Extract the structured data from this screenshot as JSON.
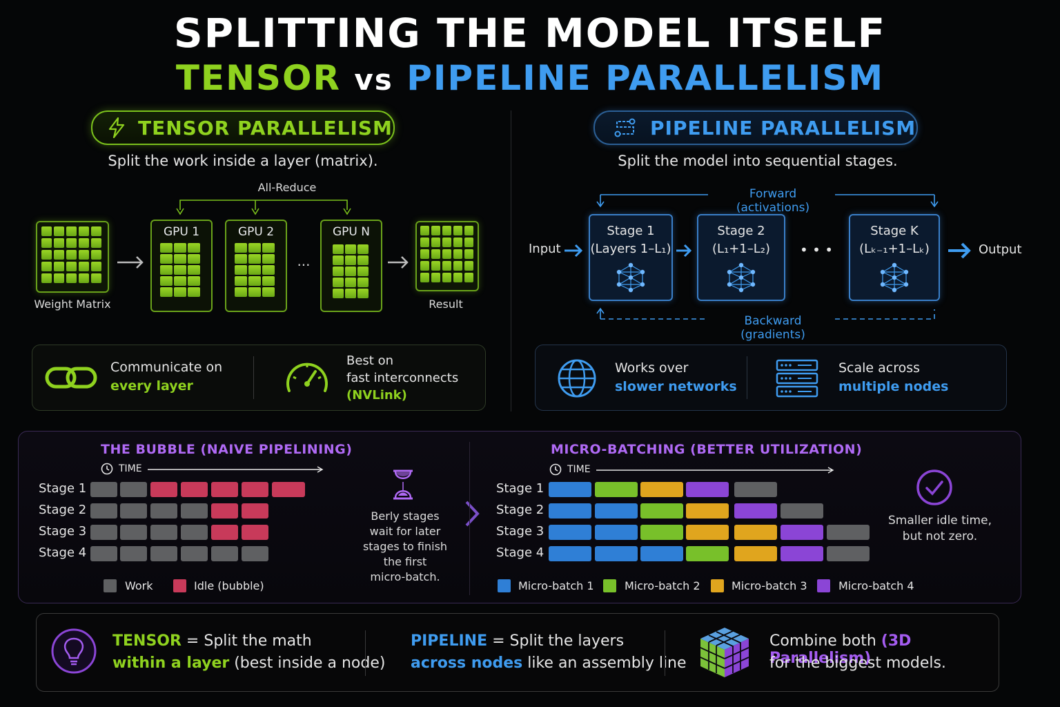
{
  "title": "SPLITTING THE MODEL ITSELF",
  "subtitle": {
    "tensor": "TENSOR",
    "vs": "vs",
    "pipeline": "PIPELINE PARALLELISM"
  },
  "tensor": {
    "heading": "TENSOR PARALLELISM",
    "description": "Split the work inside a layer (matrix).",
    "all_reduce": "All-Reduce",
    "weight_matrix": "Weight Matrix",
    "gpu1": "GPU 1",
    "gpu2": "GPU 2",
    "gpun": "GPU N",
    "ellipsis": "...",
    "result": "Result",
    "feature1_line1": "Communicate on",
    "feature1_line2": "every layer",
    "feature2_line1": "Best on",
    "feature2_line2": "fast interconnects",
    "feature2_line3": "(NVLink)"
  },
  "pipeline": {
    "heading": "PIPELINE PARALLELISM",
    "description": "Split the model into sequential stages.",
    "forward": "Forward (activations)",
    "backward": "Backward (gradients)",
    "input": "Input",
    "output": "Output",
    "ellipsis": "• • •",
    "stage1": {
      "name": "Stage 1",
      "range": "(Layers 1–L₁)"
    },
    "stage2": {
      "name": "Stage 2",
      "range": "(L₁+1–L₂)"
    },
    "stagek": {
      "name": "Stage K",
      "range": "(Lₖ₋₁+1–Lₖ)"
    },
    "feature1_line1": "Works over",
    "feature1_line2": "slower networks",
    "feature2_line1": "Scale across",
    "feature2_line2": "multiple nodes"
  },
  "bubble": {
    "title": "THE BUBBLE (NAIVE PIPELINING)",
    "time": "TIME",
    "stages": [
      "Stage 1",
      "Stage 2",
      "Stage 3",
      "Stage 4"
    ],
    "legend_work": "Work",
    "legend_idle": "Idle (bubble)",
    "note": [
      "Berly stages",
      "wait for later",
      "stages to finish",
      "the first",
      "micro-batch."
    ]
  },
  "microbatch": {
    "title": "MICRO-BATCHING (BETTER UTILIZATION)",
    "time": "TIME",
    "stages": [
      "Stage 1",
      "Stage 2",
      "Stage 3",
      "Stage 4"
    ],
    "legend": [
      "Micro-batch 1",
      "Micro-batch 2",
      "Micro-batch 3",
      "Micro-batch 4"
    ],
    "note": [
      "Smaller idle time,",
      "but not zero."
    ]
  },
  "summary": {
    "tensor_word": "TENSOR",
    "tensor_eq": " = Split the math",
    "tensor_line2a": "within a layer",
    "tensor_line2b": " (best inside a node)",
    "pipeline_word": "PIPELINE",
    "pipeline_eq": " = Split the layers",
    "pipeline_line2a": "across nodes",
    "pipeline_line2b": " like an assembly line",
    "combine_a": "Combine both ",
    "combine_b": "(3D Parallelism)",
    "combine_c": "for the biggest models."
  },
  "colors": {
    "tensor_green": "#8fd21f",
    "pipeline_blue": "#3f9cf0",
    "bubble_purple": "#a45cf0",
    "idle_red": "#c83a5a",
    "work_gray": "#5f6062",
    "microbatch_1": "#2f7fd6",
    "microbatch_2": "#78c02a",
    "microbatch_3": "#e0a51e",
    "microbatch_4": "#8b45d6"
  },
  "icons": [
    "lightning-icon",
    "pipeline-icon",
    "link-icon",
    "speedometer-icon",
    "globe-icon",
    "server-icon",
    "clock-icon",
    "hourglass-icon",
    "checkmark-icon",
    "lightbulb-icon",
    "cube-icon"
  ]
}
